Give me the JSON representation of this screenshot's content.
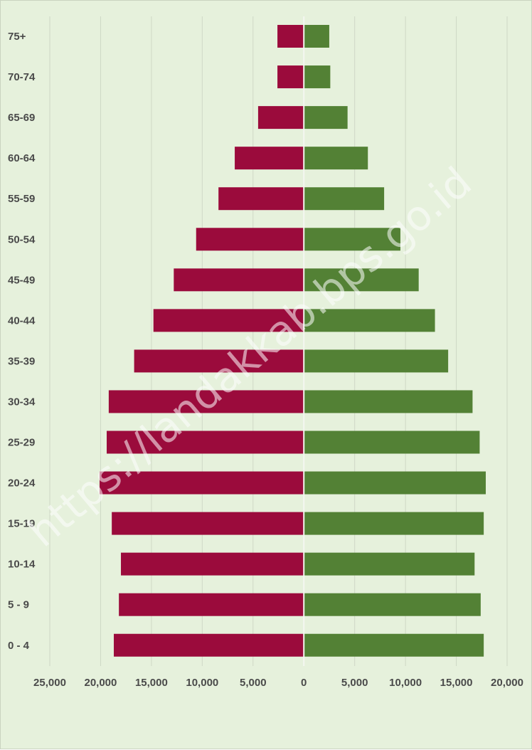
{
  "chart_data": {
    "type": "bar",
    "orientation": "horizontal",
    "subtype": "population-pyramid",
    "title": "",
    "xlabel": "",
    "ylabel": "",
    "categories": [
      "75+",
      "70-74",
      "65-69",
      "60-64",
      "55-59",
      "50-54",
      "45-49",
      "40-44",
      "35-39",
      "30-34",
      "25-29",
      "20-24",
      "15-19",
      "10-14",
      "5 - 9",
      "0 - 4"
    ],
    "series": [
      {
        "color": "#9b0b3c",
        "side": "left",
        "values": [
          2600,
          2600,
          4500,
          6800,
          8400,
          10600,
          12800,
          14800,
          16700,
          19200,
          19400,
          20100,
          18900,
          18000,
          18200,
          18700
        ]
      },
      {
        "color": "#538135",
        "side": "right",
        "values": [
          2500,
          2600,
          4300,
          6300,
          7900,
          9500,
          11300,
          12900,
          14200,
          16600,
          17300,
          17900,
          17700,
          16800,
          17400,
          17700
        ]
      }
    ],
    "xlim": [
      -25000,
      20000
    ],
    "xticks": [
      -25000,
      -20000,
      -15000,
      -10000,
      -5000,
      0,
      5000,
      10000,
      15000,
      20000
    ],
    "xtick_labels": [
      "25,000",
      "20,000",
      "15,000",
      "10,000",
      "5,000",
      "0",
      "5,000",
      "10,000",
      "15,000",
      "20,000"
    ],
    "grid": "vertical",
    "legend": "none"
  },
  "watermark": "https://landakkab.bps.go.id"
}
